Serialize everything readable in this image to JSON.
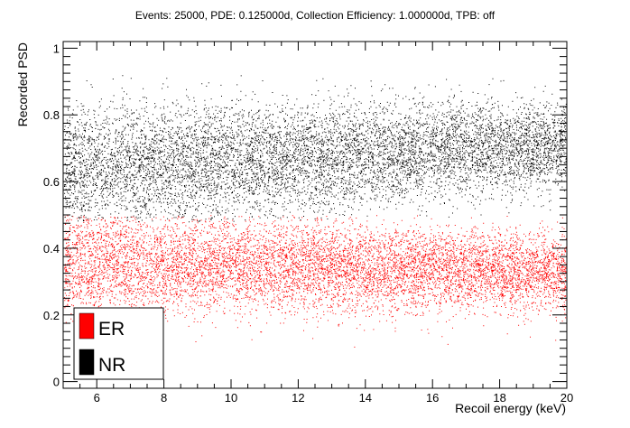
{
  "chart_data": {
    "type": "scatter",
    "title": "Events: 25000, PDE: 0.125000d, Collection Efficiency: 1.000000d, TPB: off",
    "xlabel": "Recoil energy (keV)",
    "ylabel": "Recorded PSD",
    "xlim": [
      5,
      20
    ],
    "ylim": [
      -0.02,
      1.02
    ],
    "x_ticks": [
      "6",
      "8",
      "10",
      "12",
      "14",
      "16",
      "18",
      "20"
    ],
    "y_ticks": [
      "0",
      "0.2",
      "0.4",
      "0.6",
      "0.8",
      "1"
    ],
    "legend_position": "bottom-left",
    "grid": false,
    "series": [
      {
        "name": "ER",
        "color": "#ff0000",
        "events": 25000,
        "x_range": [
          5,
          20
        ],
        "psd_mean_at_5keV": 0.36,
        "psd_mean_at_20keV": 0.33,
        "psd_spread": 0.055,
        "psd_floor": 0.1,
        "psd_ceiling": 0.5
      },
      {
        "name": "NR",
        "color": "#000000",
        "events": 25000,
        "x_range": [
          5,
          20
        ],
        "psd_mean_at_5keV": 0.64,
        "psd_mean_at_20keV": 0.71,
        "psd_spread": 0.065,
        "psd_floor": 0.48,
        "psd_ceiling": 0.92
      }
    ]
  }
}
